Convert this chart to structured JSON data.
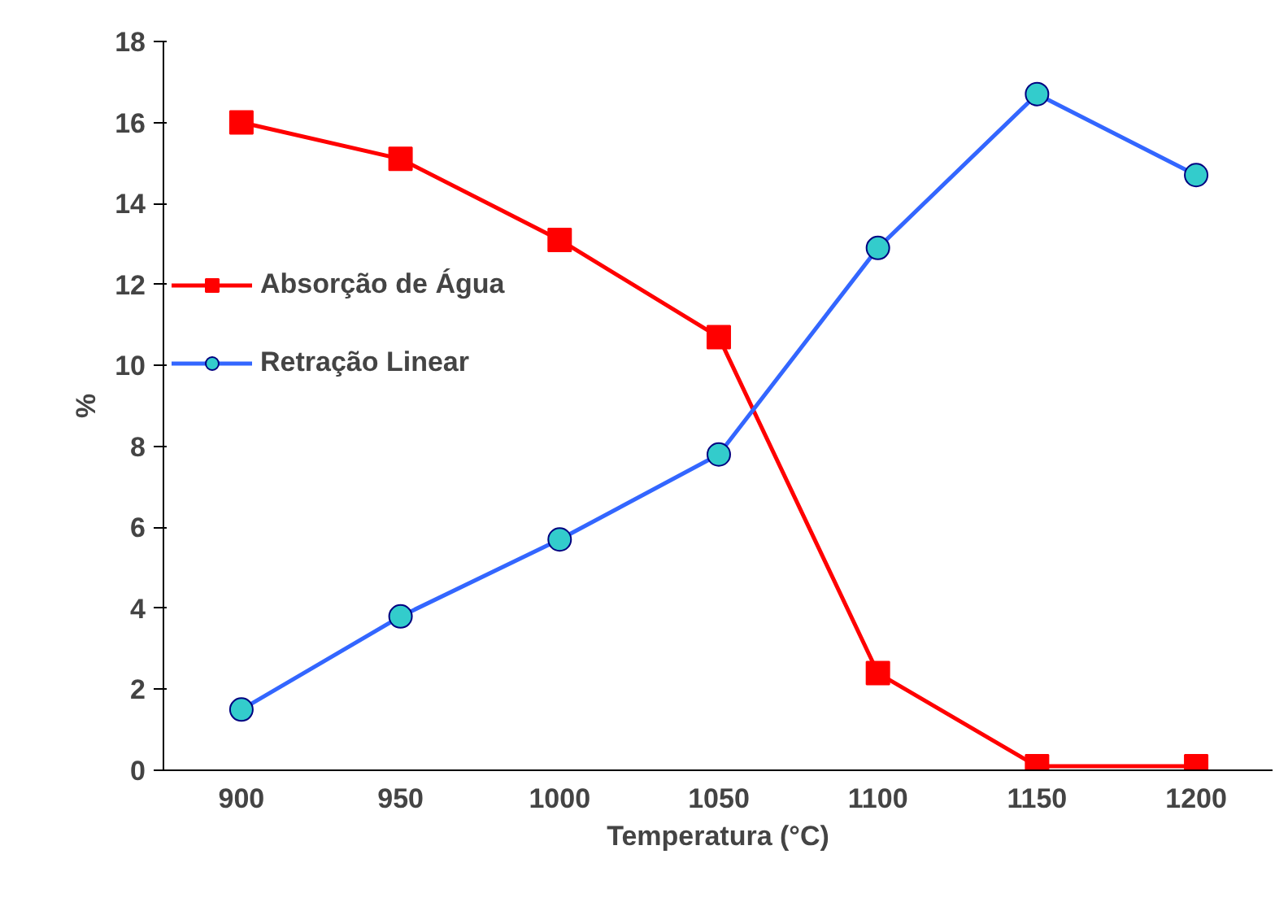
{
  "chart_data": {
    "type": "line",
    "xlabel": "Temperatura (°C)",
    "ylabel": "%",
    "categories": [
      "900",
      "950",
      "1000",
      "1050",
      "1100",
      "1150",
      "1200"
    ],
    "series": [
      {
        "name": "Absorção de Água",
        "color": "#ff0000",
        "marker": "square",
        "values": [
          16.0,
          15.1,
          13.1,
          10.7,
          2.4,
          0.1,
          0.1
        ]
      },
      {
        "name": "Retração Linear",
        "color": "#3366ff",
        "marker": "circle",
        "values": [
          1.5,
          3.8,
          5.7,
          7.8,
          12.9,
          16.7,
          14.7
        ]
      }
    ],
    "ylim": [
      0,
      18
    ],
    "yticks": [
      0,
      2,
      4,
      6,
      8,
      10,
      12,
      14,
      16,
      18
    ],
    "grid": false,
    "legend": "left"
  }
}
